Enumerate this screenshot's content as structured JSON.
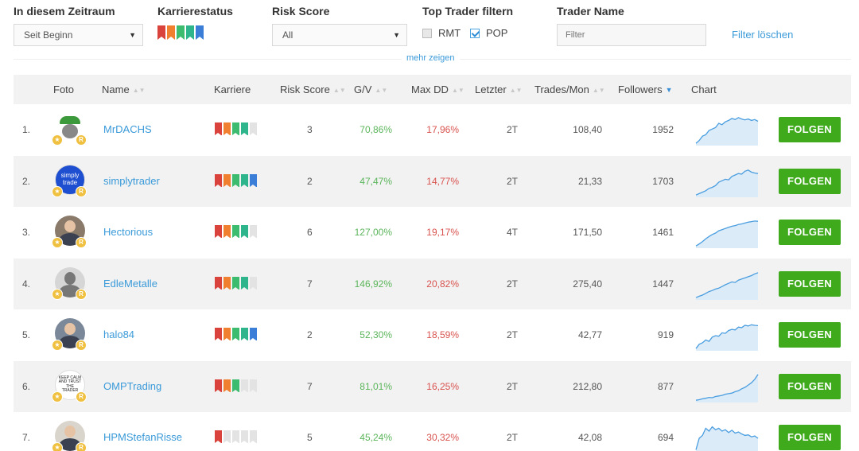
{
  "filters": {
    "period_label": "In diesem Zeitraum",
    "period_value": "Seit Beginn",
    "career_label": "Karrierestatus",
    "career_flags": [
      "#d9433b",
      "#f07f2f",
      "#3dbb6f",
      "#2fb58b",
      "#3a7ed8"
    ],
    "risk_label": "Risk Score",
    "risk_value": "All",
    "top_label": "Top Trader filtern",
    "rmt_label": "RMT",
    "pop_label": "POP",
    "name_label": "Trader Name",
    "name_placeholder": "Filter",
    "clear_label": "Filter löschen",
    "more_label": "mehr zeigen"
  },
  "columns": {
    "foto": "Foto",
    "name": "Name",
    "karriere": "Karriere",
    "risk": "Risk Score",
    "gv": "G/V",
    "maxdd": "Max DD",
    "letzter": "Letzter",
    "trades": "Trades/Mon",
    "followers": "Followers",
    "chart": "Chart"
  },
  "colors": {
    "flag_red": "#d9433b",
    "flag_orange": "#f07f2f",
    "flag_green": "#3dbb6f",
    "flag_teal": "#2fb58b",
    "flag_blue": "#3a7ed8",
    "flag_empty": "#e3e3e3",
    "follow_button": "#3eaa1c",
    "link": "#3a9ad9"
  },
  "follow_label": "FOLGEN",
  "rows": [
    {
      "rank": "1.",
      "name": "MrDACHS",
      "career": 4,
      "risk": "3",
      "gv": "70,86%",
      "maxdd": "17,96%",
      "letzter": "2T",
      "trades": "108,40",
      "followers": "1952",
      "avatar_icon": "green-cap-avatar-icon"
    },
    {
      "rank": "2.",
      "name": "simplytrader",
      "career": 5,
      "risk": "2",
      "gv": "47,47%",
      "maxdd": "14,77%",
      "letzter": "2T",
      "trades": "21,33",
      "followers": "1703",
      "avatar_icon": "simply-trade-logo-icon",
      "avatar_text": "simply trade"
    },
    {
      "rank": "3.",
      "name": "Hectorious",
      "career": 4,
      "risk": "6",
      "gv": "127,00%",
      "maxdd": "19,17%",
      "letzter": "4T",
      "trades": "171,50",
      "followers": "1461",
      "avatar_icon": "person-photo-icon"
    },
    {
      "rank": "4.",
      "name": "EdleMetalle",
      "career": 4,
      "risk": "7",
      "gv": "146,92%",
      "maxdd": "20,82%",
      "letzter": "2T",
      "trades": "275,40",
      "followers": "1447",
      "avatar_icon": "default-user-icon"
    },
    {
      "rank": "5.",
      "name": "halo84",
      "career": 5,
      "risk": "2",
      "gv": "52,30%",
      "maxdd": "18,59%",
      "letzter": "2T",
      "trades": "42,77",
      "followers": "919",
      "avatar_icon": "person-photo-icon"
    },
    {
      "rank": "6.",
      "name": "OMPTrading",
      "career": 3,
      "risk": "7",
      "gv": "81,01%",
      "maxdd": "16,25%",
      "letzter": "2T",
      "trades": "212,80",
      "followers": "877",
      "avatar_icon": "keep-calm-poster-icon",
      "avatar_text": "KEEP CALM AND TRUST THE TRADER"
    },
    {
      "rank": "7.",
      "name": "HPMStefanRisse",
      "career": 1,
      "risk": "5",
      "gv": "45,24%",
      "maxdd": "30,32%",
      "letzter": "2T",
      "trades": "42,08",
      "followers": "694",
      "avatar_icon": "person-photo-icon"
    }
  ],
  "sparklines": [
    [
      0.05,
      0.15,
      0.3,
      0.35,
      0.5,
      0.55,
      0.6,
      0.75,
      0.7,
      0.8,
      0.85,
      0.92,
      0.88,
      0.95,
      0.9,
      0.87,
      0.9,
      0.85,
      0.88,
      0.82
    ],
    [
      0.05,
      0.1,
      0.15,
      0.2,
      0.28,
      0.32,
      0.38,
      0.5,
      0.55,
      0.6,
      0.58,
      0.7,
      0.75,
      0.8,
      0.78,
      0.88,
      0.92,
      0.85,
      0.82,
      0.8
    ],
    [
      0.05,
      0.12,
      0.2,
      0.3,
      0.38,
      0.45,
      0.5,
      0.58,
      0.62,
      0.66,
      0.7,
      0.74,
      0.76,
      0.8,
      0.82,
      0.85,
      0.88,
      0.9,
      0.92,
      0.91
    ],
    [
      0.05,
      0.1,
      0.14,
      0.2,
      0.26,
      0.3,
      0.35,
      0.38,
      0.44,
      0.5,
      0.55,
      0.6,
      0.58,
      0.66,
      0.7,
      0.74,
      0.78,
      0.82,
      0.88,
      0.92
    ],
    [
      0.05,
      0.2,
      0.25,
      0.35,
      0.3,
      0.45,
      0.5,
      0.48,
      0.6,
      0.58,
      0.68,
      0.72,
      0.7,
      0.8,
      0.78,
      0.86,
      0.84,
      0.88,
      0.86,
      0.85
    ],
    [
      0.05,
      0.07,
      0.1,
      0.12,
      0.15,
      0.14,
      0.18,
      0.2,
      0.22,
      0.26,
      0.28,
      0.3,
      0.35,
      0.38,
      0.45,
      0.5,
      0.58,
      0.66,
      0.78,
      0.95
    ],
    [
      0.1,
      0.5,
      0.6,
      0.85,
      0.75,
      0.9,
      0.8,
      0.85,
      0.75,
      0.8,
      0.7,
      0.78,
      0.68,
      0.72,
      0.65,
      0.6,
      0.62,
      0.55,
      0.58,
      0.5
    ]
  ]
}
